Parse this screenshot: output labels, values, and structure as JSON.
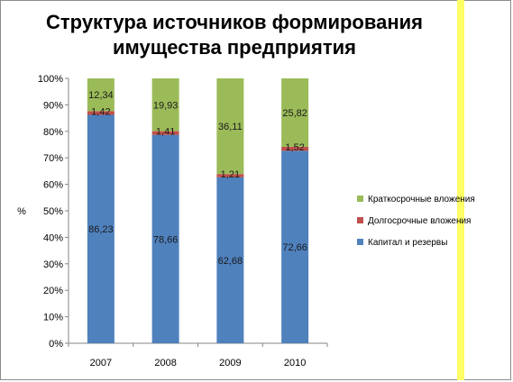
{
  "chart_data": {
    "type": "stacked-bar-100",
    "title": [
      "Структура источников формирования",
      "имущества предприятия"
    ],
    "ylabel": "%",
    "xlabel": "",
    "categories": [
      "2007",
      "2008",
      "2009",
      "2010"
    ],
    "ylim": [
      0,
      100
    ],
    "yticks": [
      "0%",
      "10%",
      "20%",
      "30%",
      "40%",
      "50%",
      "60%",
      "70%",
      "80%",
      "90%",
      "100%"
    ],
    "grid": false,
    "legend_position": "right",
    "series": [
      {
        "name": "Капитал и резервы",
        "color": "#4f81bd",
        "values": [
          86.23,
          78.66,
          62.68,
          72.66
        ],
        "labels": [
          "86,23",
          "78,66",
          "62,68",
          "72,66"
        ]
      },
      {
        "name": "Долгосрочные вложения",
        "color": "#c0504d",
        "values": [
          1.42,
          1.41,
          1.21,
          1.52
        ],
        "labels": [
          "1,42",
          "1,41",
          "1,21",
          "1,52"
        ]
      },
      {
        "name": "Краткосрочные вложения",
        "color": "#9bbb59",
        "values": [
          12.34,
          19.93,
          36.11,
          25.82
        ],
        "labels": [
          "12,34",
          "19,93",
          "36,11",
          "25,82"
        ]
      }
    ],
    "legend_order": [
      "Краткосрочные вложения",
      "Долгосрочные вложения",
      "Капитал и резервы"
    ]
  }
}
